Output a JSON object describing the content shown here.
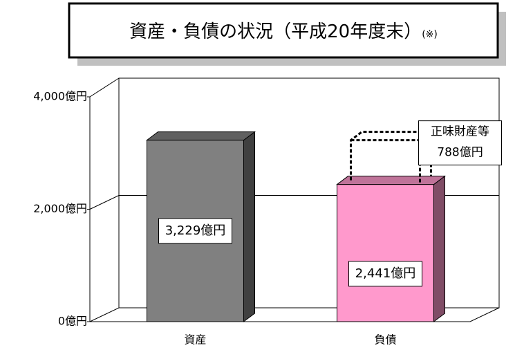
{
  "chart_data": {
    "type": "bar3d",
    "title": "資産・負債の状況（平成20年度末）",
    "title_note": "(※)",
    "categories": [
      "資産",
      "負債"
    ],
    "values": [
      3229,
      2441
    ],
    "value_labels": [
      "3,229億円",
      "2,441億円"
    ],
    "colors": [
      "#808080",
      "#ff99cc"
    ],
    "annotation": {
      "text": "正味財産等",
      "value": 788,
      "value_label": "788億円"
    },
    "ylim": [
      0,
      4000
    ],
    "yticks": [
      {
        "value": 0,
        "label": "0億円"
      },
      {
        "value": 2000,
        "label": "2,000億円"
      },
      {
        "value": 4000,
        "label": "4,000億円"
      }
    ],
    "grid": true
  }
}
